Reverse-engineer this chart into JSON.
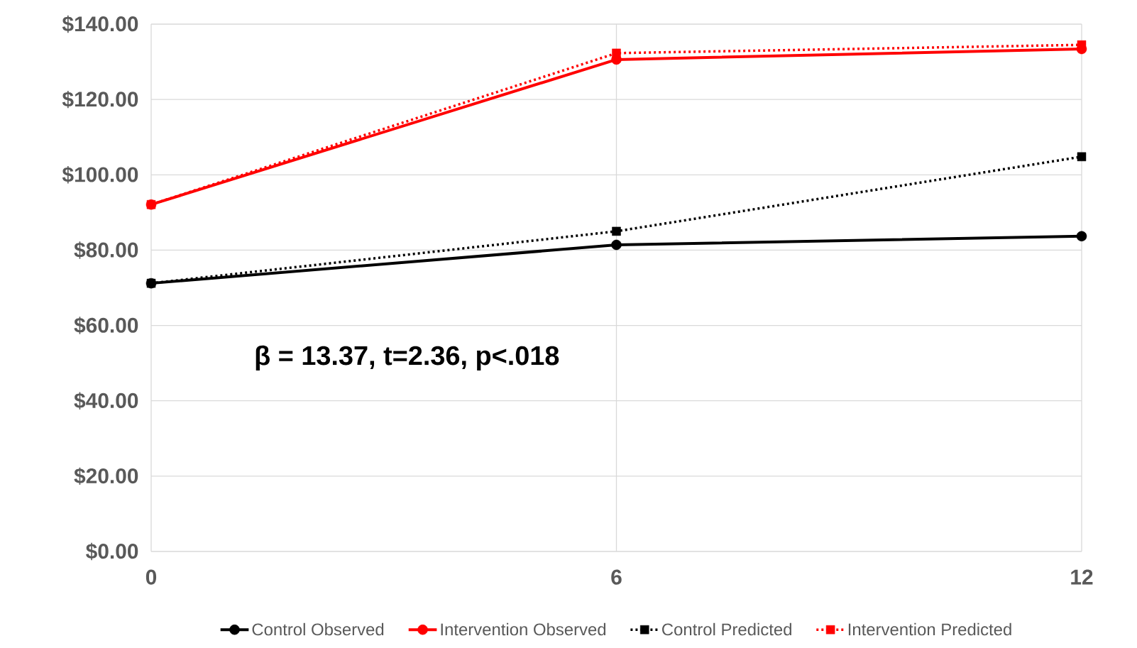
{
  "chart_data": {
    "type": "line",
    "x": [
      0,
      6,
      12
    ],
    "series": [
      {
        "name": "Control Observed",
        "color": "#000000",
        "marker": "circle",
        "line_style": "solid",
        "values": [
          71.2,
          81.4,
          83.7
        ]
      },
      {
        "name": "Intervention Observed",
        "color": "#ff0000",
        "marker": "circle",
        "line_style": "solid",
        "values": [
          92.1,
          130.6,
          133.4
        ]
      },
      {
        "name": "Control Predicted",
        "color": "#000000",
        "marker": "square",
        "line_style": "dotted",
        "values": [
          71.2,
          85.0,
          104.8
        ]
      },
      {
        "name": "Intervention Predicted",
        "color": "#ff0000",
        "marker": "square",
        "line_style": "dotted",
        "values": [
          92.1,
          132.3,
          134.5
        ]
      }
    ],
    "xlim": [
      0,
      12
    ],
    "xticks": [
      0,
      6,
      12
    ],
    "ylim": [
      0,
      140
    ],
    "yticks": [
      {
        "value": 0,
        "label": "$0.00"
      },
      {
        "value": 20,
        "label": "$20.00"
      },
      {
        "value": 40,
        "label": "$40.00"
      },
      {
        "value": 60,
        "label": "$60.00"
      },
      {
        "value": 80,
        "label": "$80.00"
      },
      {
        "value": 100,
        "label": "$100.00"
      },
      {
        "value": 120,
        "label": "$120.00"
      },
      {
        "value": 140,
        "label": "$140.00"
      }
    ],
    "grid": true,
    "legend": "bottom",
    "annotations": [
      "β = 13.37, t=2.36, p<.018"
    ]
  }
}
